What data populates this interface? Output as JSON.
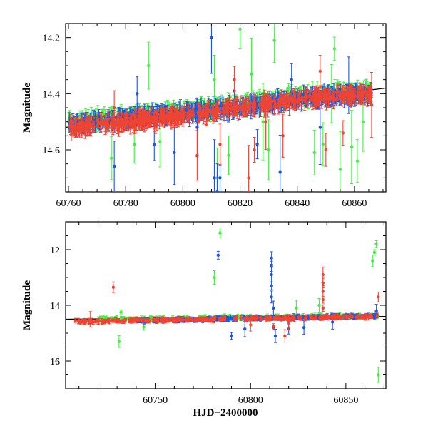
{
  "chart_data": [
    {
      "type": "scatter",
      "panel": "top",
      "title": "",
      "xlabel": "",
      "ylabel": "Magnitude",
      "xlim": [
        60759,
        60871
      ],
      "ylim": [
        14.75,
        14.15
      ],
      "y_inverted": true,
      "grid": false,
      "x_ticks": [
        60760,
        60780,
        60800,
        60820,
        60840,
        60860
      ],
      "x_tick_labels": [
        "60760",
        "60780",
        "60800",
        "60820",
        "60840",
        "60860"
      ],
      "y_ticks": [
        14.2,
        14.4,
        14.6
      ],
      "y_tick_labels": [
        "14.2",
        "14.4",
        "14.6"
      ],
      "reference_line": {
        "x": [
          60759,
          60871
        ],
        "y": [
          14.52,
          14.38
        ],
        "color": "#000000"
      },
      "series": [
        {
          "color": "#2255dd",
          "trend": [
            [
              60760,
              14.51
            ],
            [
              60780,
              14.49
            ],
            [
              60800,
              14.47
            ],
            [
              60820,
              14.45
            ],
            [
              60840,
              14.42
            ],
            [
              60866,
              14.4
            ]
          ],
          "outliers": [
            [
              60776,
              14.66
            ],
            [
              60784,
              14.4
            ],
            [
              60790,
              14.58
            ],
            [
              60797,
              14.61
            ],
            [
              60805,
              14.52
            ],
            [
              60810,
              14.2
            ],
            [
              60811,
              14.7
            ],
            [
              60812,
              14.75
            ],
            [
              60813,
              14.7
            ],
            [
              60818,
              14.39
            ],
            [
              60826,
              14.58
            ],
            [
              60834,
              14.68
            ],
            [
              60838,
              14.35
            ],
            [
              60848,
              14.52
            ],
            [
              60858,
              14.37
            ]
          ]
        },
        {
          "color": "#44ee44",
          "trend": [
            [
              60760,
              14.5
            ],
            [
              60780,
              14.48
            ],
            [
              60800,
              14.46
            ],
            [
              60820,
              14.44
            ],
            [
              60840,
              14.41
            ],
            [
              60866,
              14.39
            ]
          ],
          "outliers": [
            [
              60775,
              14.63
            ],
            [
              60783,
              14.58
            ],
            [
              60788,
              14.3
            ],
            [
              60792,
              14.57
            ],
            [
              60811,
              14.35
            ],
            [
              60812,
              14.7
            ],
            [
              60816,
              14.62
            ],
            [
              60820,
              14.17
            ],
            [
              60824,
              14.33
            ],
            [
              60828,
              14.5
            ],
            [
              60830,
              14.6
            ],
            [
              60832,
              14.21
            ],
            [
              60846,
              14.61
            ],
            [
              60849,
              14.58
            ],
            [
              60852,
              14.4
            ],
            [
              60853,
              14.24
            ],
            [
              60855,
              14.67
            ],
            [
              60859,
              14.59
            ],
            [
              60861,
              14.64
            ],
            [
              60863,
              14.5
            ]
          ]
        },
        {
          "color": "#ee4433",
          "trend": [
            [
              60760,
              14.52
            ],
            [
              60780,
              14.5
            ],
            [
              60800,
              14.48
            ],
            [
              60820,
              14.45
            ],
            [
              60840,
              14.42
            ],
            [
              60866,
              14.4
            ]
          ],
          "outliers": [
            [
              60776,
              14.45
            ],
            [
              60805,
              14.62
            ],
            [
              60813,
              14.58
            ],
            [
              60818,
              14.35
            ],
            [
              60823,
              14.7
            ],
            [
              60825,
              14.6
            ],
            [
              60829,
              14.5
            ],
            [
              60835,
              14.55
            ],
            [
              60848,
              14.32
            ],
            [
              60850,
              14.6
            ],
            [
              60856,
              14.54
            ],
            [
              60866,
              14.44
            ]
          ]
        }
      ]
    },
    {
      "type": "scatter",
      "panel": "bottom",
      "title": "",
      "xlabel": "HJD−2400000",
      "ylabel": "Magnitude",
      "xlim": [
        60703,
        60871
      ],
      "ylim": [
        17,
        11
      ],
      "y_inverted": true,
      "grid": false,
      "x_ticks": [
        60750,
        60800,
        60850
      ],
      "x_tick_labels": [
        "60750",
        "60800",
        "60850"
      ],
      "y_ticks": [
        12,
        14,
        16
      ],
      "y_tick_labels": [
        "12",
        "14",
        "16"
      ],
      "reference_line": {
        "x": [
          60703,
          60871
        ],
        "y": [
          14.5,
          14.4
        ],
        "color": "#000000"
      },
      "series": [
        {
          "color": "#2255dd",
          "range": [
            60740,
            60867
          ],
          "base": [
            14.55,
            14.38
          ],
          "outliers": [
            [
              60783,
              12.2
            ],
            [
              60811,
              12.3
            ],
            [
              60811,
              12.6
            ],
            [
              60811,
              12.9
            ],
            [
              60811,
              13.3
            ],
            [
              60811,
              13.7
            ],
            [
              60812,
              14.1
            ],
            [
              60812,
              14.8
            ],
            [
              60813,
              15.1
            ],
            [
              60790,
              15.1
            ],
            [
              60797,
              14.85
            ],
            [
              60820,
              14.85
            ],
            [
              60828,
              14.8
            ],
            [
              60843,
              14.6
            ],
            [
              60866,
              14.2
            ]
          ]
        },
        {
          "color": "#44ee44",
          "range": [
            60720,
            60867
          ],
          "base": [
            14.5,
            14.38
          ],
          "outliers": [
            [
              60731,
              15.3
            ],
            [
              60732,
              14.25
            ],
            [
              60744,
              14.78
            ],
            [
              60784,
              11.4
            ],
            [
              60781,
              13.0
            ],
            [
              60824,
              14.1
            ],
            [
              60836,
              14.0
            ],
            [
              60864,
              12.4
            ],
            [
              60865,
              12.1
            ],
            [
              60866,
              11.8
            ],
            [
              60867,
              16.5
            ]
          ]
        },
        {
          "color": "#ee4433",
          "range": [
            60708,
            60867
          ],
          "base": [
            14.58,
            14.4
          ],
          "outliers": [
            [
              60728,
              13.35
            ],
            [
              60716,
              14.5
            ],
            [
              60800,
              14.7
            ],
            [
              60812,
              14.75
            ],
            [
              60818,
              15.1
            ],
            [
              60820,
              14.6
            ],
            [
              60838,
              12.9
            ],
            [
              60838,
              13.2
            ],
            [
              60838,
              13.5
            ],
            [
              60838,
              13.8
            ],
            [
              60838,
              14.1
            ],
            [
              60867,
              13.7
            ]
          ]
        }
      ]
    }
  ]
}
